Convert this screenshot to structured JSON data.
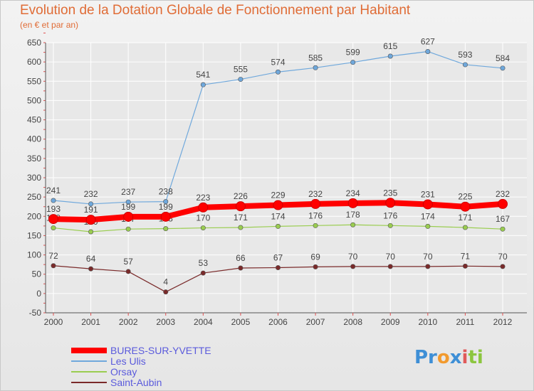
{
  "header": {
    "title": "Evolution de la Dotation Globale de Fonctionnement par Habitant",
    "subtitle": "(en € et par an)"
  },
  "logo": {
    "text": "Proxiti",
    "parts": [
      "Pr",
      "o",
      "x",
      "i",
      "ti"
    ]
  },
  "colors": {
    "title": "#e06c36",
    "axis": "#555555",
    "tick_marks": "#e05050",
    "grid": "#ffffff",
    "legend_text": "#5a5adc"
  },
  "chart_data": {
    "type": "line",
    "title": "Evolution de la Dotation Globale de Fonctionnement par Habitant",
    "subtitle": "(en € et par an)",
    "xlabel": "",
    "ylabel": "",
    "ylim": [
      -50,
      650
    ],
    "ytick_step": 50,
    "grid": true,
    "legend_position": "bottom-left",
    "x": [
      "2000",
      "2001",
      "2002",
      "2003",
      "2004",
      "2005",
      "2006",
      "2007",
      "2008",
      "2009",
      "2010",
      "2011",
      "2012"
    ],
    "series": [
      {
        "name": "BURES-SUR-YVETTE",
        "color": "#ff0000",
        "values": [
          193,
          191,
          199,
          199,
          223,
          226,
          229,
          232,
          234,
          235,
          231,
          225,
          232
        ]
      },
      {
        "name": "Les Ulis",
        "color": "#6fa8dc",
        "values": [
          241,
          232,
          237,
          238,
          541,
          555,
          574,
          585,
          599,
          615,
          627,
          593,
          584
        ]
      },
      {
        "name": "Orsay",
        "color": "#9acd50",
        "values": [
          170,
          160,
          167,
          168,
          170,
          171,
          174,
          176,
          178,
          176,
          174,
          171,
          167
        ]
      },
      {
        "name": "Saint-Aubin",
        "color": "#7a2a2a",
        "values": [
          72,
          64,
          57,
          4,
          53,
          66,
          67,
          69,
          70,
          70,
          70,
          71,
          70
        ]
      }
    ]
  }
}
